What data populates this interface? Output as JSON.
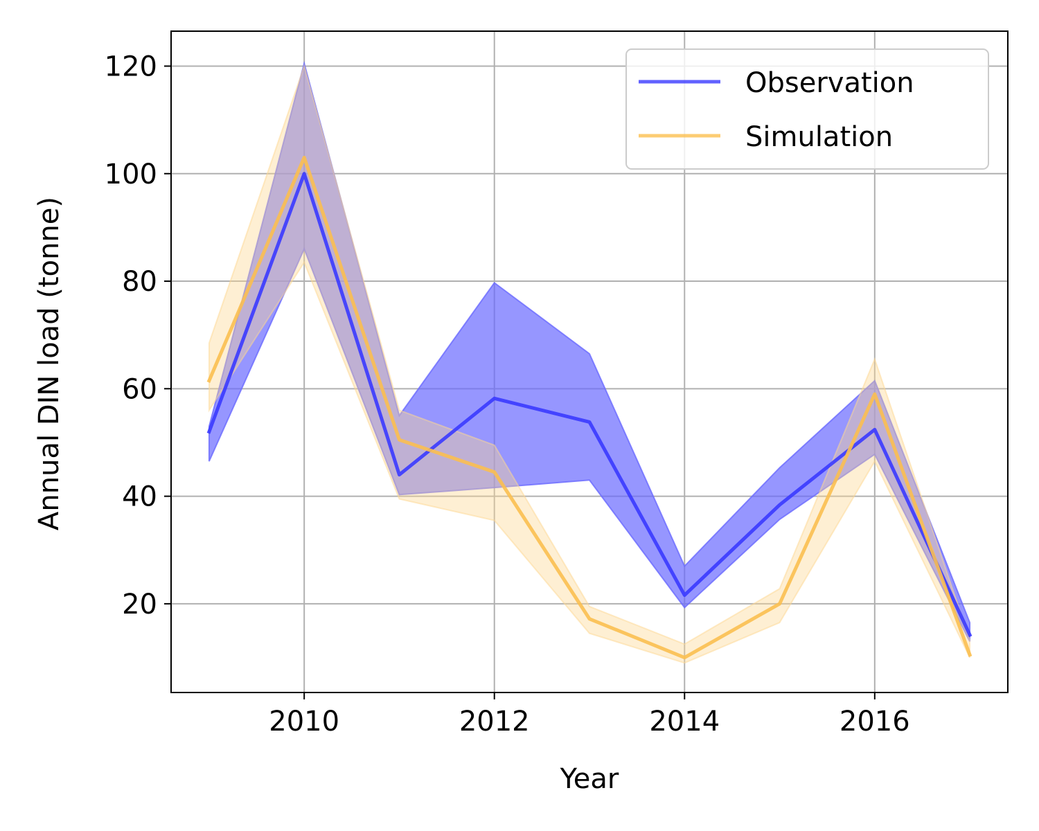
{
  "chart_data": {
    "type": "line",
    "title": "",
    "xlabel": "Year",
    "ylabel": "Annual DIN load (tonne)",
    "xlim": [
      2008.6,
      2017.4
    ],
    "ylim": [
      3.5,
      126.5
    ],
    "x_ticks": [
      2010,
      2012,
      2014,
      2016
    ],
    "y_ticks": [
      20,
      40,
      60,
      80,
      100,
      120
    ],
    "grid": true,
    "legend_position": "top-right",
    "x": [
      2009,
      2010,
      2011,
      2012,
      2013,
      2014,
      2015,
      2016,
      2017
    ],
    "series": [
      {
        "name": "Observation",
        "color": "#3a3aff",
        "band_color": "#6a6aff",
        "values": [
          52,
          100,
          44,
          58.2,
          53.8,
          21.6,
          38.4,
          52.4,
          14.2
        ],
        "lower": [
          46.5,
          86,
          40.3,
          41.6,
          43,
          19.3,
          35.7,
          47.8,
          13
        ],
        "upper": [
          53,
          120.5,
          55,
          79.7,
          66.5,
          27,
          45.3,
          61.5,
          16.5
        ]
      },
      {
        "name": "Simulation",
        "color": "#fbbf50",
        "band_color": "#fdd891",
        "values": [
          61.5,
          103,
          50.5,
          44.5,
          17.2,
          10,
          20,
          59,
          10.5
        ],
        "lower": [
          56,
          83.5,
          39.5,
          35.5,
          14.5,
          9,
          16.5,
          46.5,
          10
        ],
        "upper": [
          68.5,
          120,
          56,
          49.5,
          19.5,
          12.5,
          22.8,
          65.5,
          13.3
        ]
      }
    ]
  }
}
